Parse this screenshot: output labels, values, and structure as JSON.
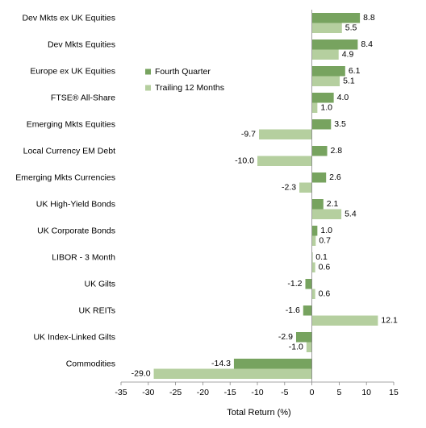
{
  "chart_data": {
    "type": "bar",
    "orientation": "horizontal",
    "categories": [
      "Dev Mkts ex UK Equities",
      "Dev Mkts Equities",
      "Europe ex UK Equities",
      "FTSE® All-Share",
      "Emerging Mkts Equities",
      "Local Currency EM Debt",
      "Emerging Mkts Currencies",
      "UK High-Yield Bonds",
      "UK Corporate Bonds",
      "LIBOR - 3 Month",
      "UK Gilts",
      "UK REITs",
      "UK Index-Linked Gilts",
      "Commodities"
    ],
    "series": [
      {
        "name": "Fourth Quarter",
        "color": "#77a35f",
        "values": [
          8.8,
          8.4,
          6.1,
          4.0,
          3.5,
          2.8,
          2.6,
          2.1,
          1.0,
          0.1,
          -1.2,
          -1.6,
          -2.9,
          -14.3
        ],
        "labels": [
          "8.8",
          "8.4",
          "6.1",
          "4.0",
          "3.5",
          "2.8",
          "2.6",
          "2.1",
          "1.0",
          "0.1",
          "-1.2",
          "-1.6",
          "-2.9",
          "-14.3"
        ]
      },
      {
        "name": "Trailing 12 Months",
        "color": "#b5cf9f",
        "values": [
          5.5,
          4.9,
          5.1,
          1.0,
          -9.7,
          -10.0,
          -2.3,
          5.4,
          0.7,
          0.6,
          0.6,
          12.1,
          -1.0,
          -29.0
        ],
        "labels": [
          "5.5",
          "4.9",
          "5.1",
          "1.0",
          "-9.7",
          "-10.0",
          "-2.3",
          "5.4",
          "0.7",
          "0.6",
          "0.6",
          "12.1",
          "-1.0",
          "-29.0"
        ]
      }
    ],
    "xlabel": "Total Return (%)",
    "xlim": [
      -35,
      15
    ],
    "xticks": [
      -35,
      -30,
      -25,
      -20,
      -15,
      -10,
      -5,
      0,
      5,
      10,
      15
    ],
    "grid": false,
    "legend_position": "top-left of plot area"
  }
}
